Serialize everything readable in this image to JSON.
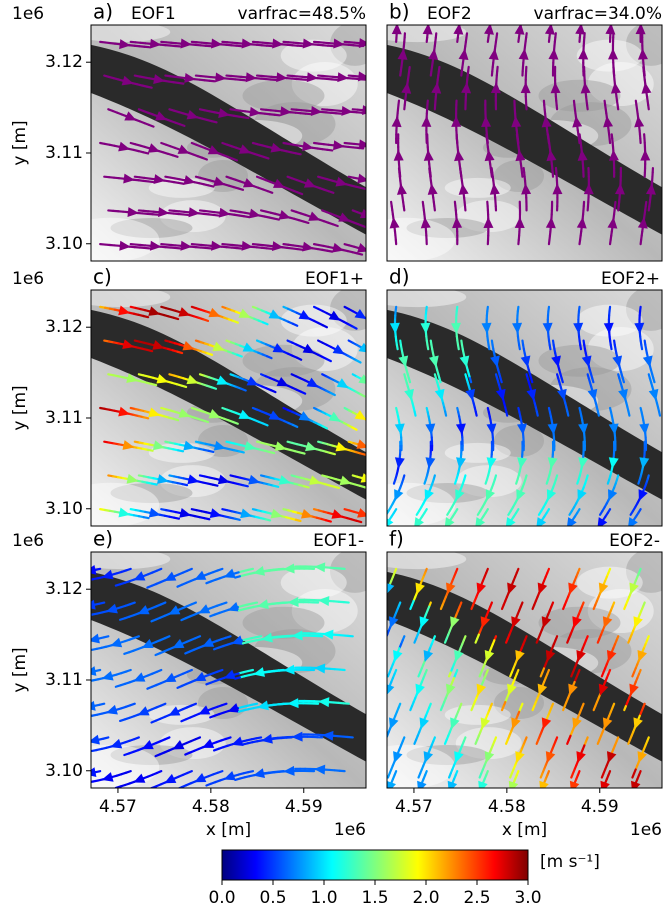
{
  "chart_data": [
    {
      "type": "streamplot",
      "panel_label": "a)",
      "title": "EOF1",
      "annotation": "varfrac=48.5%",
      "color": "#800080",
      "xlim": [
        4.5671,
        4.5967
      ],
      "ylim": [
        3.0981,
        3.1241
      ],
      "yticks": [
        {
          "value": 3.1,
          "label": "3.10"
        },
        3.11,
        3.12
      ],
      "ylabel": "y [m]",
      "y_offset": "1e6"
    },
    {
      "type": "streamplot",
      "panel_label": "b)",
      "title": "EOF2",
      "annotation": "varfrac=34.0%",
      "color": "#800080",
      "xlim": [
        4.5671,
        4.5967
      ],
      "ylim": [
        3.0981,
        3.1241
      ]
    },
    {
      "type": "streamplot",
      "panel_label": "c)",
      "title": "EOF1+",
      "colormap": "jet",
      "xlim": [
        4.5671,
        4.5967
      ],
      "ylim": [
        3.0981,
        3.1241
      ],
      "yticks": [
        {
          "value": 3.1,
          "label": "3.10"
        },
        3.11,
        3.12
      ],
      "ylabel": "y [m]",
      "y_offset": "1e6"
    },
    {
      "type": "streamplot",
      "panel_label": "d)",
      "title": "EOF2+",
      "colormap": "jet",
      "xlim": [
        4.5671,
        4.5967
      ],
      "ylim": [
        3.0981,
        3.1241
      ]
    },
    {
      "type": "streamplot",
      "panel_label": "e)",
      "title": "EOF1-",
      "colormap": "jet",
      "xlim": [
        4.5671,
        4.5967
      ],
      "ylim": [
        3.0981,
        3.1241
      ],
      "yticks": [
        {
          "value": 3.1,
          "label": "3.10"
        },
        3.11,
        3.12
      ],
      "ylabel": "y [m]",
      "y_offset": "1e6",
      "xticks": [
        4.57,
        4.58,
        4.59
      ],
      "xlabel": "x [m]",
      "x_offset": "1e6"
    },
    {
      "type": "streamplot",
      "panel_label": "f)",
      "title": "EOF2-",
      "colormap": "jet",
      "xlim": [
        4.5671,
        4.5967
      ],
      "ylim": [
        3.0981,
        3.1241
      ],
      "xticks": [
        4.57,
        4.58,
        4.59
      ],
      "xlabel": "x [m]",
      "x_offset": "1e6"
    },
    {
      "type": "colorbar",
      "colormap": "jet",
      "label": "[m s⁻¹]",
      "xlim": [
        0,
        3
      ],
      "xticks": [
        {
          "value": 0,
          "label": "0.0"
        },
        0.5,
        {
          "value": 1,
          "label": "1.0"
        },
        1.5,
        {
          "value": 2,
          "label": "2.0"
        },
        2.5,
        {
          "value": 3,
          "label": "3.0"
        }
      ]
    }
  ]
}
